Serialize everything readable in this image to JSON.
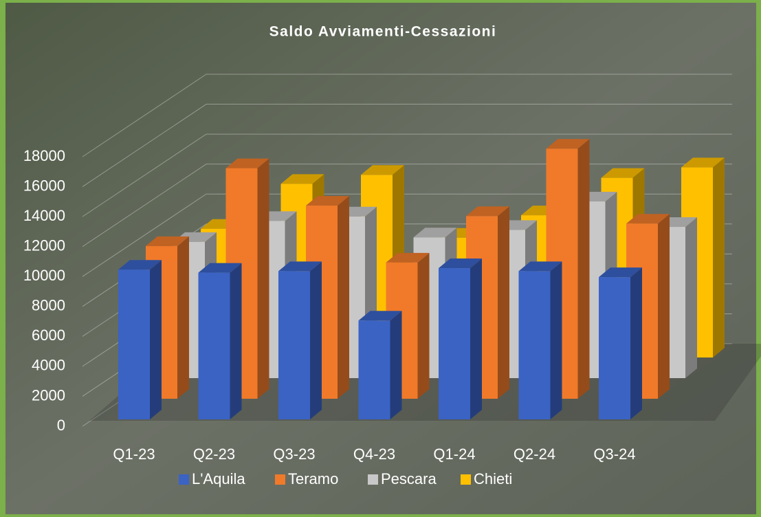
{
  "chart_data": {
    "type": "bar3d",
    "title": "Saldo Avviamenti-Cessazioni",
    "categories": [
      "Q1-23",
      "Q2-23",
      "Q3-23",
      "Q4-23",
      "Q1-24",
      "Q2-24",
      "Q3-24"
    ],
    "series": [
      {
        "name": "L'Aquila",
        "color": "#3a63c4",
        "values": [
          10000,
          9800,
          9900,
          6600,
          10100,
          9900,
          9500
        ]
      },
      {
        "name": "Teramo",
        "color": "#f07a2a",
        "values": [
          10200,
          15400,
          12900,
          9100,
          12200,
          16700,
          11700
        ]
      },
      {
        "name": "Pescara",
        "color": "#c8c8c8",
        "values": [
          9100,
          10500,
          10800,
          9400,
          9900,
          11800,
          10100
        ]
      },
      {
        "name": "Chieti",
        "color": "#ffc000",
        "values": [
          8600,
          11600,
          12200,
          8000,
          9500,
          12000,
          12700
        ]
      }
    ],
    "ylim": [
      0,
      18000
    ],
    "yticks": [
      0,
      2000,
      4000,
      6000,
      8000,
      10000,
      12000,
      14000,
      16000,
      18000
    ],
    "grid": true
  }
}
